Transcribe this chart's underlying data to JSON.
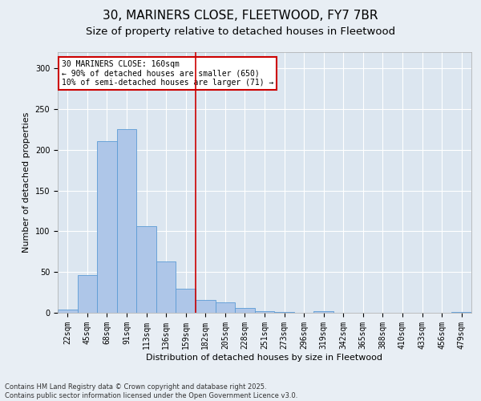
{
  "title_line1": "30, MARINERS CLOSE, FLEETWOOD, FY7 7BR",
  "title_line2": "Size of property relative to detached houses in Fleetwood",
  "xlabel": "Distribution of detached houses by size in Fleetwood",
  "ylabel": "Number of detached properties",
  "footer_line1": "Contains HM Land Registry data © Crown copyright and database right 2025.",
  "footer_line2": "Contains public sector information licensed under the Open Government Licence v3.0.",
  "categories": [
    "22sqm",
    "45sqm",
    "68sqm",
    "91sqm",
    "113sqm",
    "136sqm",
    "159sqm",
    "182sqm",
    "205sqm",
    "228sqm",
    "251sqm",
    "273sqm",
    "296sqm",
    "319sqm",
    "342sqm",
    "365sqm",
    "388sqm",
    "410sqm",
    "433sqm",
    "456sqm",
    "479sqm"
  ],
  "values": [
    4,
    46,
    211,
    225,
    106,
    63,
    30,
    16,
    13,
    6,
    2,
    1,
    0,
    2,
    0,
    0,
    0,
    0,
    0,
    0,
    1
  ],
  "bar_color": "#aec6e8",
  "bar_edge_color": "#5b9bd5",
  "vline_index": 6,
  "vline_color": "#cc0000",
  "annotation_line1": "30 MARINERS CLOSE: 160sqm",
  "annotation_line2": "← 90% of detached houses are smaller (650)",
  "annotation_line3": "10% of semi-detached houses are larger (71) →",
  "annotation_box_color": "#cc0000",
  "ylim": [
    0,
    320
  ],
  "yticks": [
    0,
    50,
    100,
    150,
    200,
    250,
    300
  ],
  "background_color": "#e8eef4",
  "plot_background_color": "#dce6f0",
  "grid_color": "#ffffff",
  "title_fontsize": 11,
  "subtitle_fontsize": 9.5,
  "axis_label_fontsize": 8,
  "tick_fontsize": 7,
  "annotation_fontsize": 7,
  "footer_fontsize": 6
}
